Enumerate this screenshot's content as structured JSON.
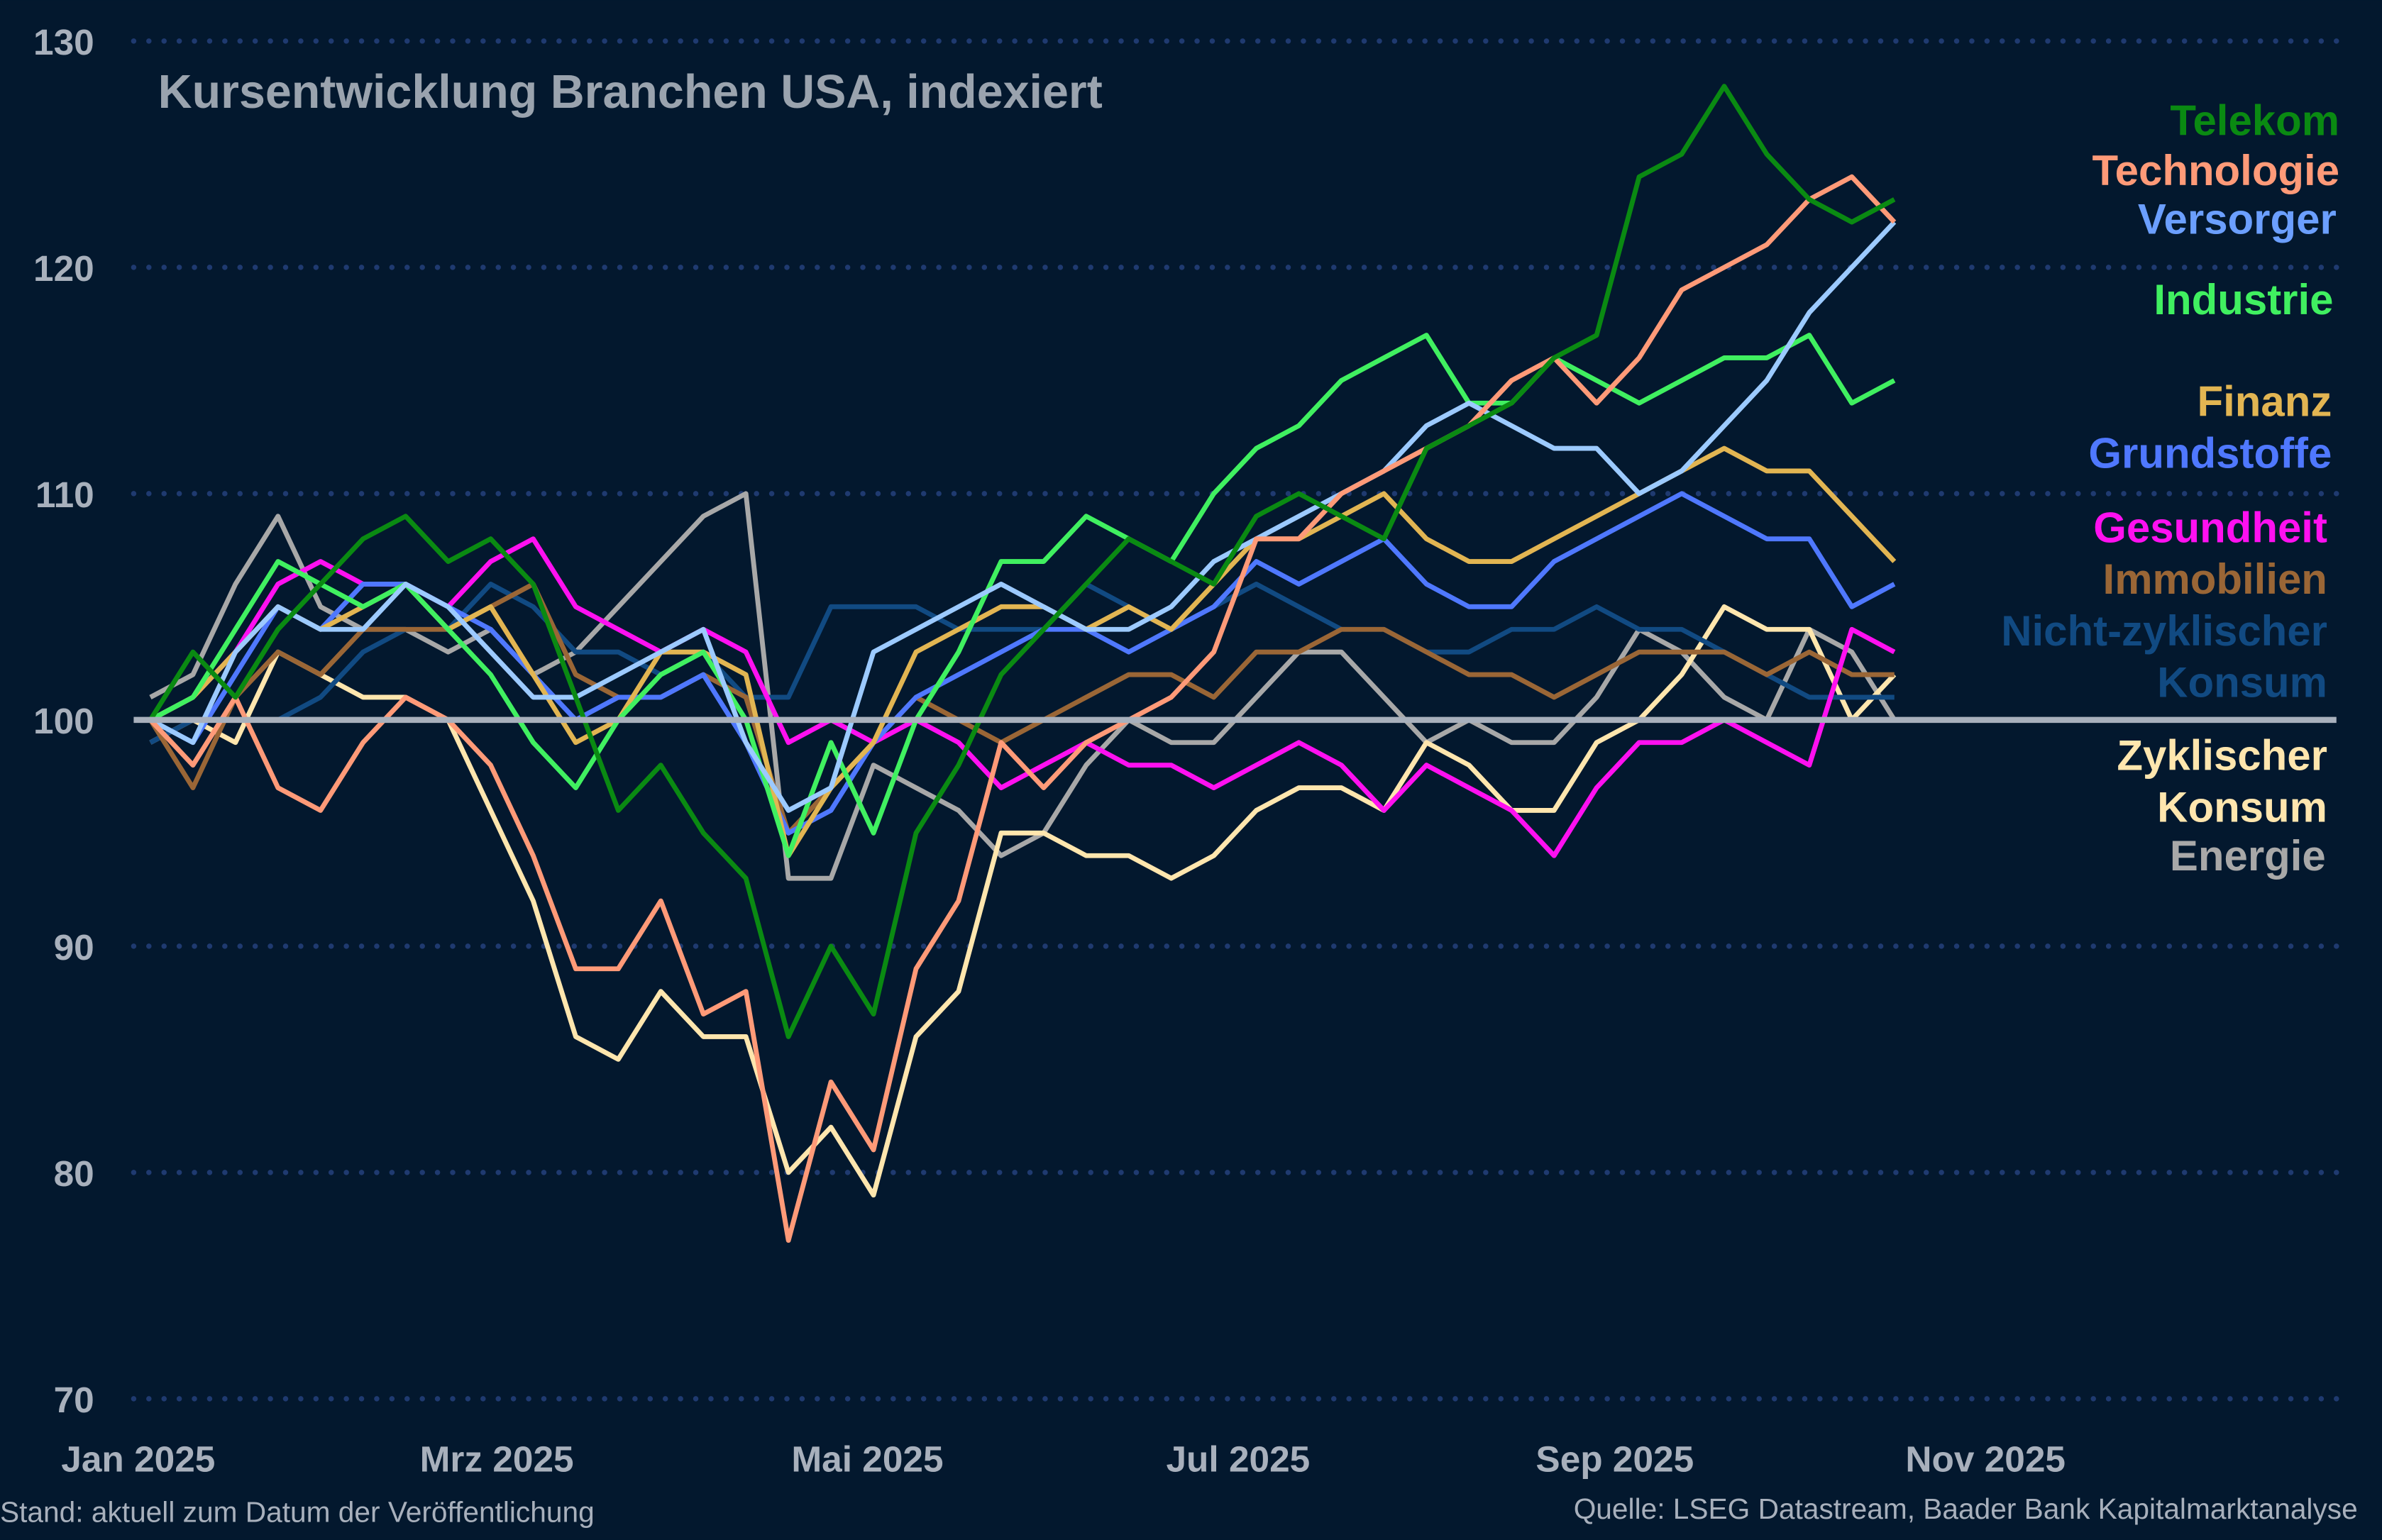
{
  "chart_data": {
    "type": "line",
    "title": "Kursentwicklung Branchen USA, indexiert",
    "xlabel": "",
    "ylabel": "",
    "ylim": [
      70,
      130
    ],
    "yticks": [
      70,
      80,
      90,
      100,
      110,
      120,
      130
    ],
    "xlim": [
      "2025-01-01",
      "2025-12-31"
    ],
    "xticks": [
      {
        "date": "2025-01-01",
        "label": "Jan 2025"
      },
      {
        "date": "2025-03-01",
        "label": "Mrz 2025"
      },
      {
        "date": "2025-05-01",
        "label": "Mai 2025"
      },
      {
        "date": "2025-07-01",
        "label": "Jul 2025"
      },
      {
        "date": "2025-09-01",
        "label": "Sep 2025"
      },
      {
        "date": "2025-11-01",
        "label": "Nov 2025"
      }
    ],
    "grid": "horizontal dotted",
    "baseline": 100,
    "legend_placement": "right",
    "x": [
      "2025-01-03",
      "2025-01-10",
      "2025-01-17",
      "2025-01-24",
      "2025-01-31",
      "2025-02-07",
      "2025-02-14",
      "2025-02-21",
      "2025-02-28",
      "2025-03-07",
      "2025-03-14",
      "2025-03-21",
      "2025-03-28",
      "2025-04-04",
      "2025-04-11",
      "2025-04-18",
      "2025-04-25",
      "2025-05-02",
      "2025-05-09",
      "2025-05-16",
      "2025-05-23",
      "2025-05-30",
      "2025-06-06",
      "2025-06-13",
      "2025-06-20",
      "2025-06-27",
      "2025-07-04",
      "2025-07-11",
      "2025-07-18",
      "2025-07-25",
      "2025-08-01",
      "2025-08-08",
      "2025-08-15",
      "2025-08-22",
      "2025-08-29",
      "2025-09-05",
      "2025-09-12",
      "2025-09-19",
      "2025-09-26",
      "2025-10-03",
      "2025-10-10",
      "2025-10-17"
    ],
    "series": [
      {
        "name": "Telekom",
        "color": "#0a8a12",
        "values": [
          100,
          103,
          101,
          104,
          106,
          108,
          109,
          107,
          108,
          106,
          101,
          96,
          98,
          95,
          93,
          86,
          90,
          87,
          95,
          98,
          102,
          104,
          106,
          108,
          107,
          106,
          109,
          110,
          109,
          108,
          112,
          113,
          114,
          116,
          117,
          124,
          125,
          128,
          125,
          123,
          122,
          123
        ]
      },
      {
        "name": "Technologie",
        "color": "#ff9a78",
        "values": [
          100,
          98,
          101,
          97,
          96,
          99,
          101,
          100,
          98,
          94,
          89,
          89,
          92,
          87,
          88,
          77,
          84,
          81,
          89,
          92,
          99,
          97,
          99,
          100,
          101,
          103,
          108,
          108,
          110,
          111,
          112,
          113,
          115,
          116,
          114,
          116,
          119,
          120,
          121,
          123,
          124,
          122
        ]
      },
      {
        "name": "Versorger",
        "color": "#9ccaff",
        "label_color": "#6b9fff",
        "values": [
          100,
          99,
          103,
          105,
          104,
          104,
          106,
          105,
          103,
          101,
          101,
          102,
          103,
          104,
          99,
          96,
          97,
          103,
          104,
          105,
          106,
          105,
          104,
          104,
          105,
          107,
          108,
          109,
          110,
          111,
          113,
          114,
          113,
          112,
          112,
          110,
          111,
          113,
          115,
          118,
          120,
          122
        ]
      },
      {
        "name": "Industrie",
        "color": "#40f060",
        "values": [
          100,
          101,
          104,
          107,
          106,
          105,
          106,
          104,
          102,
          99,
          97,
          100,
          102,
          103,
          100,
          94,
          99,
          95,
          100,
          103,
          107,
          107,
          109,
          108,
          107,
          110,
          112,
          113,
          115,
          116,
          117,
          114,
          114,
          116,
          115,
          114,
          115,
          116,
          116,
          117,
          114,
          115
        ]
      },
      {
        "name": "Finanz",
        "color": "#e2b552",
        "values": [
          100,
          101,
          103,
          105,
          104,
          105,
          106,
          104,
          105,
          102,
          99,
          100,
          103,
          103,
          102,
          94,
          97,
          99,
          103,
          104,
          105,
          105,
          104,
          105,
          104,
          106,
          108,
          108,
          109,
          110,
          108,
          107,
          107,
          108,
          109,
          110,
          111,
          112,
          111,
          111,
          109,
          107
        ]
      },
      {
        "name": "Grundstoffe",
        "color": "#4f78ff",
        "values": [
          100,
          99,
          102,
          105,
          104,
          106,
          106,
          105,
          104,
          102,
          100,
          101,
          101,
          102,
          99,
          95,
          96,
          99,
          101,
          102,
          103,
          104,
          104,
          103,
          104,
          105,
          107,
          106,
          107,
          108,
          106,
          105,
          105,
          107,
          108,
          109,
          110,
          109,
          108,
          108,
          105,
          106
        ]
      },
      {
        "name": "Gesundheit",
        "color": "#ff10f0",
        "values": [
          100,
          101,
          103,
          106,
          107,
          106,
          106,
          105,
          107,
          108,
          105,
          104,
          103,
          104,
          103,
          99,
          100,
          99,
          100,
          99,
          97,
          98,
          99,
          98,
          98,
          97,
          98,
          99,
          98,
          96,
          98,
          97,
          96,
          94,
          97,
          99,
          99,
          100,
          99,
          98,
          104,
          103
        ]
      },
      {
        "name": "Immobilien",
        "color": "#9a6636",
        "values": [
          100,
          97,
          101,
          103,
          102,
          104,
          104,
          104,
          105,
          106,
          102,
          101,
          101,
          102,
          101,
          95,
          97,
          99,
          101,
          100,
          99,
          100,
          101,
          102,
          102,
          101,
          103,
          103,
          104,
          104,
          103,
          102,
          102,
          101,
          102,
          103,
          103,
          103,
          102,
          103,
          102,
          102
        ]
      },
      {
        "name": "Nicht-zyklischer Konsum",
        "label_lines": [
          "Nicht-zyklischer",
          "Konsum"
        ],
        "color": "#114a82",
        "values": [
          99,
          100,
          100,
          100,
          101,
          103,
          104,
          104,
          106,
          105,
          103,
          103,
          102,
          103,
          101,
          101,
          105,
          105,
          105,
          104,
          104,
          104,
          106,
          105,
          104,
          105,
          106,
          105,
          104,
          104,
          103,
          103,
          104,
          104,
          105,
          104,
          104,
          103,
          102,
          101,
          101,
          101
        ]
      },
      {
        "name": "Zyklischer Konsum",
        "label_lines": [
          "Zyklischer",
          "Konsum"
        ],
        "color": "#ffe6ae",
        "values": [
          99,
          100,
          99,
          103,
          102,
          101,
          101,
          100,
          96,
          92,
          86,
          85,
          88,
          86,
          86,
          80,
          82,
          79,
          86,
          88,
          95,
          95,
          94,
          94,
          93,
          94,
          96,
          97,
          97,
          96,
          99,
          98,
          96,
          96,
          99,
          100,
          102,
          105,
          104,
          104,
          100,
          102
        ]
      },
      {
        "name": "Energie",
        "color": "#a8a8a8",
        "values": [
          101,
          102,
          106,
          109,
          105,
          104,
          104,
          103,
          104,
          102,
          103,
          105,
          107,
          109,
          110,
          93,
          93,
          98,
          97,
          96,
          94,
          95,
          98,
          100,
          99,
          99,
          101,
          103,
          103,
          101,
          99,
          100,
          99,
          99,
          101,
          104,
          103,
          101,
          100,
          104,
          103,
          100
        ]
      }
    ]
  },
  "footer": {
    "left": "Stand: aktuell zum Datum der Veröffentlichung",
    "right": "Quelle: LSEG Datastream, Baader Bank Kapitalmarktanalyse"
  },
  "colors": {
    "background": "#03182e",
    "grid": "#1f3a70",
    "baseline": "#a8b0bc",
    "axis_text": "#a8b0bc"
  }
}
